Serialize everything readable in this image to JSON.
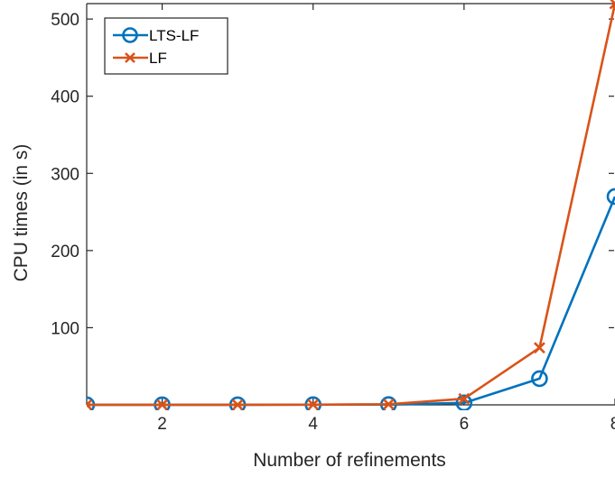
{
  "chart_data": {
    "type": "line",
    "title": "",
    "xlabel": "Number of refinements",
    "ylabel": "CPU times (in s)",
    "xlim": [
      1,
      8
    ],
    "ylim": [
      0,
      520
    ],
    "xticks": [
      2,
      4,
      6,
      8
    ],
    "yticks": [
      100,
      200,
      300,
      400,
      500
    ],
    "grid": false,
    "legend_position": "top-left",
    "x": [
      1,
      2,
      3,
      4,
      5,
      6,
      7,
      8
    ],
    "series": [
      {
        "name": "LTS-LF",
        "marker": "circle",
        "color": "#0072BD",
        "values": [
          0.1,
          0.1,
          0.1,
          0.2,
          0.4,
          2.5,
          34,
          270
        ]
      },
      {
        "name": "LF",
        "marker": "x",
        "color": "#D95319",
        "values": [
          0.1,
          0.1,
          0.1,
          0.3,
          0.8,
          8,
          74,
          520
        ]
      }
    ]
  }
}
